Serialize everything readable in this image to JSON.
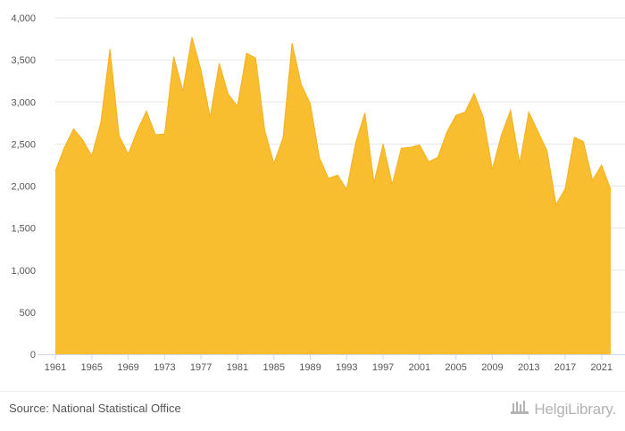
{
  "chart_data": {
    "type": "area",
    "title": "",
    "xlabel": "",
    "ylabel": "",
    "ylim": [
      0,
      4000
    ],
    "yticks": [
      0,
      500,
      1000,
      1500,
      2000,
      2500,
      3000,
      3500,
      4000
    ],
    "ytick_labels": [
      "0",
      "500",
      "1,000",
      "1,500",
      "2,000",
      "2,500",
      "3,000",
      "3,500",
      "4,000"
    ],
    "xlim": [
      1961,
      2022
    ],
    "xticks": [
      1961,
      1965,
      1969,
      1973,
      1977,
      1981,
      1985,
      1989,
      1993,
      1997,
      2001,
      2005,
      2009,
      2013,
      2017,
      2021
    ],
    "xtick_labels": [
      "1961",
      "1965",
      "1969",
      "1973",
      "1977",
      "1981",
      "1985",
      "1989",
      "1993",
      "1997",
      "2001",
      "2005",
      "2009",
      "2013",
      "2017",
      "2021"
    ],
    "grid": true,
    "series": [
      {
        "color": "#f9bd30",
        "x": [
          1961,
          1962,
          1963,
          1964,
          1965,
          1966,
          1967,
          1968,
          1969,
          1970,
          1971,
          1972,
          1973,
          1974,
          1975,
          1976,
          1977,
          1978,
          1979,
          1980,
          1981,
          1982,
          1983,
          1984,
          1985,
          1986,
          1987,
          1988,
          1989,
          1990,
          1991,
          1992,
          1993,
          1994,
          1995,
          1996,
          1997,
          1998,
          1999,
          2000,
          2001,
          2002,
          2003,
          2004,
          2005,
          2006,
          2007,
          2008,
          2009,
          2010,
          2011,
          2012,
          2013,
          2014,
          2015,
          2016,
          2017,
          2018,
          2019,
          2020,
          2021,
          2022
        ],
        "values": [
          2180,
          2460,
          2680,
          2550,
          2360,
          2760,
          3630,
          2600,
          2380,
          2660,
          2890,
          2610,
          2620,
          3540,
          3130,
          3770,
          3380,
          2820,
          3460,
          3090,
          2950,
          3580,
          3520,
          2660,
          2270,
          2570,
          3700,
          3210,
          2980,
          2340,
          2090,
          2130,
          1960,
          2520,
          2870,
          2040,
          2500,
          2020,
          2450,
          2460,
          2490,
          2290,
          2340,
          2640,
          2840,
          2880,
          3100,
          2820,
          2200,
          2610,
          2900,
          2270,
          2880,
          2650,
          2420,
          1780,
          1970,
          2580,
          2530,
          2070,
          2250,
          1960
        ]
      }
    ]
  },
  "footer": {
    "source": "Source: National Statistical Office",
    "brand": "HelgiLibrary."
  }
}
